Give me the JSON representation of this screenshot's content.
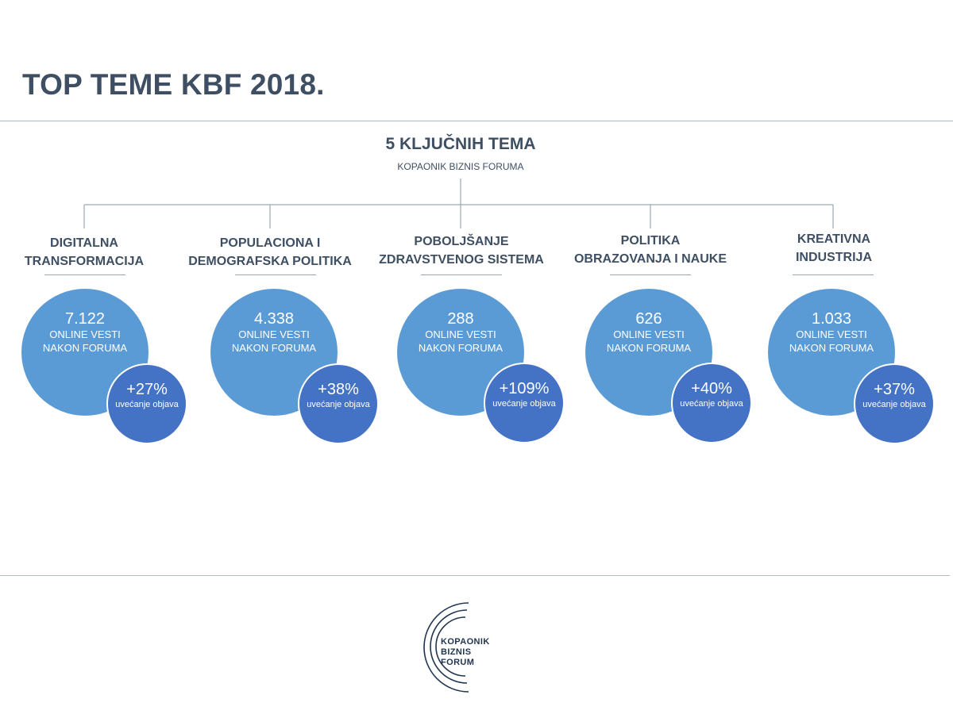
{
  "title": "TOP TEME KBF 2018.",
  "center": {
    "title": "5 KLJUČNIH TEMA",
    "subtitle": "KOPAONIK BIZNIS FORUMA"
  },
  "topics": [
    {
      "title_lines": [
        "DIGITALNA",
        "TRANSFORMACIJA"
      ],
      "count": "7.122",
      "count_label_lines": [
        "ONLINE VESTI",
        "NAKON FORUMA"
      ],
      "growth": "+27%",
      "growth_label": "uvećanje objava"
    },
    {
      "title_lines": [
        "POPULACIONA  I",
        "DEMOGRAFSKA POLITIKA"
      ],
      "count": "4.338",
      "count_label_lines": [
        "ONLINE VESTI",
        "NAKON FORUMA"
      ],
      "growth": "+38%",
      "growth_label": "uvećanje objava"
    },
    {
      "title_lines": [
        "POBOLJŠANJE",
        "ZDRAVSTVENOG SISTEMA"
      ],
      "count": "288",
      "count_label_lines": [
        "ONLINE VESTI",
        "NAKON FORUMA"
      ],
      "growth": "+109%",
      "growth_label": "uvećanje objava"
    },
    {
      "title_lines": [
        "POLITIKA",
        "OBRAZOVANJA I NAUKE"
      ],
      "count": "626",
      "count_label_lines": [
        "ONLINE VESTI",
        "NAKON FORUMA"
      ],
      "growth": "+40%",
      "growth_label": "uvećanje objava"
    },
    {
      "title_lines": [
        "KREATIVNA",
        "INDUSTRIJA"
      ],
      "count": "1.033",
      "count_label_lines": [
        "ONLINE VESTI",
        "NAKON FORUMA"
      ],
      "growth": "+37%",
      "growth_label": "uvećanje objava"
    }
  ],
  "logo": {
    "lines": [
      "KOPAONIK",
      "BIZNIS",
      "FORUM"
    ]
  },
  "colors": {
    "title_text": "#3e4f63",
    "big_circle": "#5b9bd5",
    "small_circle": "#4472c4",
    "connector": "#9aa7b3",
    "logo": "#1f3550"
  }
}
